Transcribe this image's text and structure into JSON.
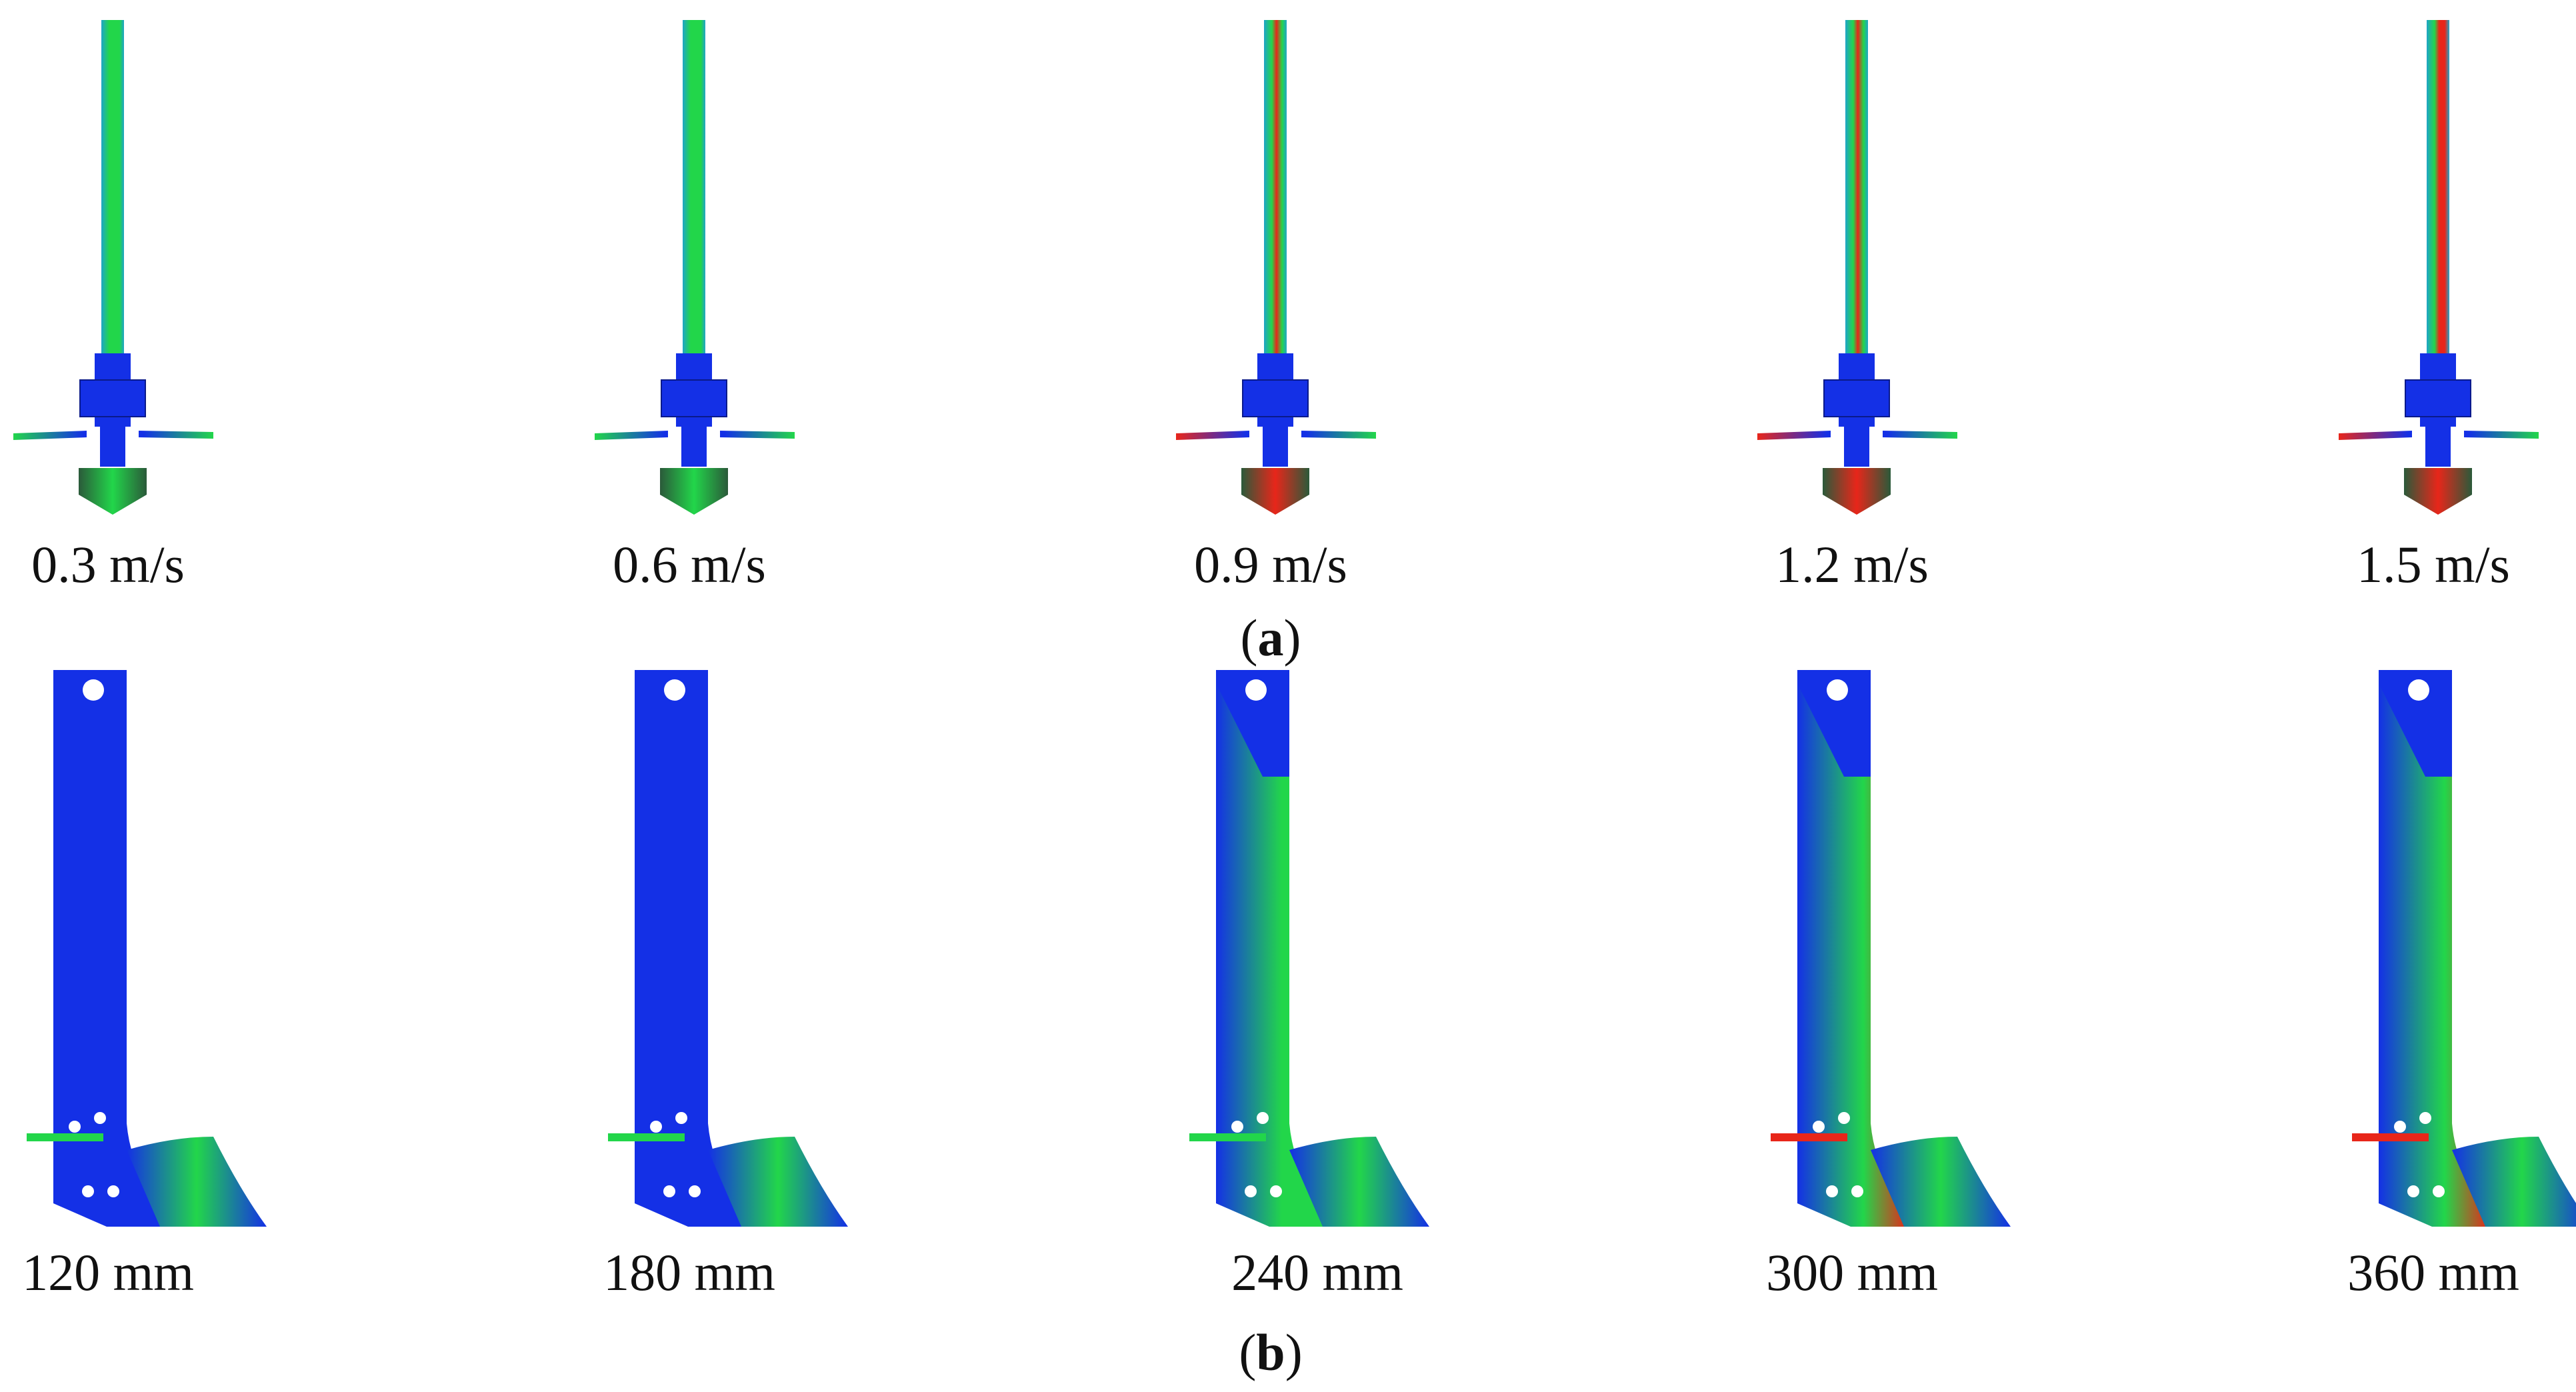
{
  "figure": {
    "row_a": {
      "label_open": "(",
      "label_letter": "a",
      "label_close": ")",
      "items": [
        {
          "caption": "0.3 m/s",
          "stress_level": 0.25
        },
        {
          "caption": "0.6 m/s",
          "stress_level": 0.45
        },
        {
          "caption": "0.9 m/s",
          "stress_level": 0.7
        },
        {
          "caption": "1.2 m/s",
          "stress_level": 0.82
        },
        {
          "caption": "1.5 m/s",
          "stress_level": 0.95
        }
      ]
    },
    "row_b": {
      "label_open": "(",
      "label_letter": "b",
      "label_close": ")",
      "items": [
        {
          "caption": "120 mm",
          "stress_level": 0.05
        },
        {
          "caption": "180 mm",
          "stress_level": 0.12
        },
        {
          "caption": "240 mm",
          "stress_level": 0.45
        },
        {
          "caption": "300 mm",
          "stress_level": 0.75
        },
        {
          "caption": "360 mm",
          "stress_level": 0.95
        }
      ]
    },
    "colors": {
      "blue": "#1430e6",
      "green": "#22d64a",
      "red": "#e8261a",
      "cyan": "#1fa5c8",
      "dark": "#2b5a3a"
    }
  }
}
